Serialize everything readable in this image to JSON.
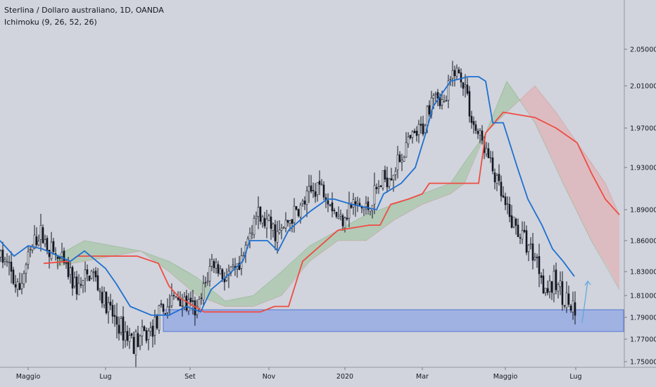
{
  "header": {
    "symbol_line": "Sterlina / Dollaro australiano, 1D, OANDA",
    "indicator_line": "Ichimoku (9, 26, 52, 26)"
  },
  "colors": {
    "background": "#d1d4dc",
    "up_candle": "#ffffff",
    "down_candle": "#131722",
    "conversion_line": "#1e6fd1",
    "base_line": "#ef4c44",
    "cloud_bull": "#8fbf8a",
    "cloud_bear": "#e8a0a0",
    "support_zone": "#6f8fe6",
    "arrow": "#5aa6e0"
  },
  "chart_data": {
    "type": "candlestick",
    "title": "Sterlina / Dollaro australiano, 1D, OANDA",
    "indicator": "Ichimoku (9, 26, 52, 26)",
    "x_ticks": [
      "Maggio",
      "Lug",
      "Set",
      "Nov",
      "2020",
      "Mar",
      "Maggio",
      "Lug"
    ],
    "x_tick_index": [
      40,
      150,
      270,
      382,
      490,
      600,
      718,
      818
    ],
    "y_ticks": [
      "2.05000",
      "2.01000",
      "1.97000",
      "1.93000",
      "1.89000",
      "1.86000",
      "1.83000",
      "1.81000",
      "1.79000",
      "1.77000",
      "1.75000"
    ],
    "y_tick_values": [
      2.05,
      2.01,
      1.97,
      1.93,
      1.89,
      1.86,
      1.83,
      1.81,
      1.79,
      1.77,
      1.75
    ],
    "y_range": [
      1.745,
      2.09
    ],
    "close_path": [
      [
        0,
        1.845
      ],
      [
        10,
        1.835
      ],
      [
        25,
        1.812
      ],
      [
        40,
        1.845
      ],
      [
        55,
        1.868
      ],
      [
        70,
        1.852
      ],
      [
        90,
        1.835
      ],
      [
        110,
        1.815
      ],
      [
        130,
        1.83
      ],
      [
        150,
        1.8
      ],
      [
        170,
        1.78
      ],
      [
        190,
        1.768
      ],
      [
        210,
        1.775
      ],
      [
        230,
        1.795
      ],
      [
        250,
        1.81
      ],
      [
        265,
        1.8
      ],
      [
        280,
        1.795
      ],
      [
        300,
        1.84
      ],
      [
        320,
        1.825
      ],
      [
        340,
        1.83
      ],
      [
        360,
        1.885
      ],
      [
        380,
        1.875
      ],
      [
        395,
        1.865
      ],
      [
        410,
        1.88
      ],
      [
        430,
        1.895
      ],
      [
        450,
        1.915
      ],
      [
        465,
        1.905
      ],
      [
        480,
        1.88
      ],
      [
        500,
        1.895
      ],
      [
        520,
        1.89
      ],
      [
        540,
        1.915
      ],
      [
        560,
        1.93
      ],
      [
        580,
        1.955
      ],
      [
        600,
        1.97
      ],
      [
        615,
        2.01
      ],
      [
        630,
        1.99
      ],
      [
        645,
        2.03
      ],
      [
        660,
        2.01
      ],
      [
        670,
        1.975
      ],
      [
        685,
        1.955
      ],
      [
        700,
        1.925
      ],
      [
        720,
        1.885
      ],
      [
        740,
        1.865
      ],
      [
        760,
        1.845
      ],
      [
        775,
        1.815
      ],
      [
        790,
        1.82
      ],
      [
        805,
        1.805
      ],
      [
        818,
        1.787
      ]
    ],
    "conversion_line_path": [
      [
        0,
        1.86
      ],
      [
        20,
        1.845
      ],
      [
        40,
        1.855
      ],
      [
        60,
        1.852
      ],
      [
        100,
        1.84
      ],
      [
        120,
        1.85
      ],
      [
        150,
        1.833
      ],
      [
        165,
        1.82
      ],
      [
        185,
        1.8
      ],
      [
        215,
        1.792
      ],
      [
        240,
        1.792
      ],
      [
        265,
        1.8
      ],
      [
        285,
        1.795
      ],
      [
        300,
        1.815
      ],
      [
        320,
        1.825
      ],
      [
        345,
        1.84
      ],
      [
        355,
        1.86
      ],
      [
        380,
        1.86
      ],
      [
        395,
        1.85
      ],
      [
        410,
        1.87
      ],
      [
        440,
        1.888
      ],
      [
        465,
        1.9
      ],
      [
        475,
        1.9
      ],
      [
        500,
        1.895
      ],
      [
        535,
        1.89
      ],
      [
        545,
        1.905
      ],
      [
        570,
        1.915
      ],
      [
        590,
        1.93
      ],
      [
        605,
        1.965
      ],
      [
        615,
        1.99
      ],
      [
        640,
        2.015
      ],
      [
        665,
        2.02
      ],
      [
        680,
        2.02
      ],
      [
        690,
        2.015
      ],
      [
        700,
        1.975
      ],
      [
        715,
        1.975
      ],
      [
        735,
        1.93
      ],
      [
        750,
        1.9
      ],
      [
        770,
        1.875
      ],
      [
        785,
        1.852
      ],
      [
        800,
        1.84
      ],
      [
        816,
        1.826
      ]
    ],
    "base_line_path": [
      [
        62,
        1.838
      ],
      [
        100,
        1.84
      ],
      [
        110,
        1.845
      ],
      [
        170,
        1.845
      ],
      [
        195,
        1.845
      ],
      [
        225,
        1.838
      ],
      [
        240,
        1.818
      ],
      [
        255,
        1.808
      ],
      [
        290,
        1.795
      ],
      [
        370,
        1.795
      ],
      [
        390,
        1.8
      ],
      [
        410,
        1.8
      ],
      [
        430,
        1.84
      ],
      [
        480,
        1.87
      ],
      [
        525,
        1.875
      ],
      [
        540,
        1.875
      ],
      [
        555,
        1.895
      ],
      [
        580,
        1.9
      ],
      [
        600,
        1.905
      ],
      [
        610,
        1.915
      ],
      [
        660,
        1.915
      ],
      [
        680,
        1.915
      ],
      [
        690,
        1.965
      ],
      [
        715,
        1.985
      ],
      [
        760,
        1.98
      ],
      [
        790,
        1.97
      ],
      [
        820,
        1.955
      ],
      [
        840,
        1.925
      ],
      [
        860,
        1.9
      ],
      [
        880,
        1.885
      ]
    ],
    "span_a_path": [
      [
        80,
        1.845
      ],
      [
        120,
        1.86
      ],
      [
        160,
        1.855
      ],
      [
        200,
        1.85
      ],
      [
        240,
        1.84
      ],
      [
        280,
        1.825
      ],
      [
        320,
        1.805
      ],
      [
        360,
        1.81
      ],
      [
        400,
        1.83
      ],
      [
        440,
        1.855
      ],
      [
        480,
        1.87
      ],
      [
        520,
        1.885
      ],
      [
        560,
        1.895
      ],
      [
        600,
        1.905
      ],
      [
        640,
        1.915
      ],
      [
        660,
        1.935
      ],
      [
        690,
        1.965
      ],
      [
        720,
        2.015
      ],
      [
        760,
        1.975
      ],
      [
        800,
        1.915
      ],
      [
        840,
        1.86
      ],
      [
        880,
        1.815
      ]
    ],
    "span_b_path": [
      [
        80,
        1.835
      ],
      [
        120,
        1.84
      ],
      [
        160,
        1.845
      ],
      [
        200,
        1.85
      ],
      [
        240,
        1.83
      ],
      [
        280,
        1.81
      ],
      [
        320,
        1.8
      ],
      [
        360,
        1.8
      ],
      [
        400,
        1.81
      ],
      [
        440,
        1.84
      ],
      [
        480,
        1.86
      ],
      [
        520,
        1.86
      ],
      [
        560,
        1.88
      ],
      [
        600,
        1.895
      ],
      [
        640,
        1.905
      ],
      [
        660,
        1.915
      ],
      [
        690,
        1.965
      ],
      [
        720,
        1.985
      ],
      [
        760,
        2.01
      ],
      [
        790,
        1.985
      ],
      [
        820,
        1.955
      ],
      [
        860,
        1.915
      ],
      [
        880,
        1.885
      ]
    ],
    "support_zone": [
      1.777,
      1.797
    ],
    "arrow": {
      "from": [
        827,
        1.785
      ],
      "to": [
        835,
        1.822
      ]
    }
  }
}
